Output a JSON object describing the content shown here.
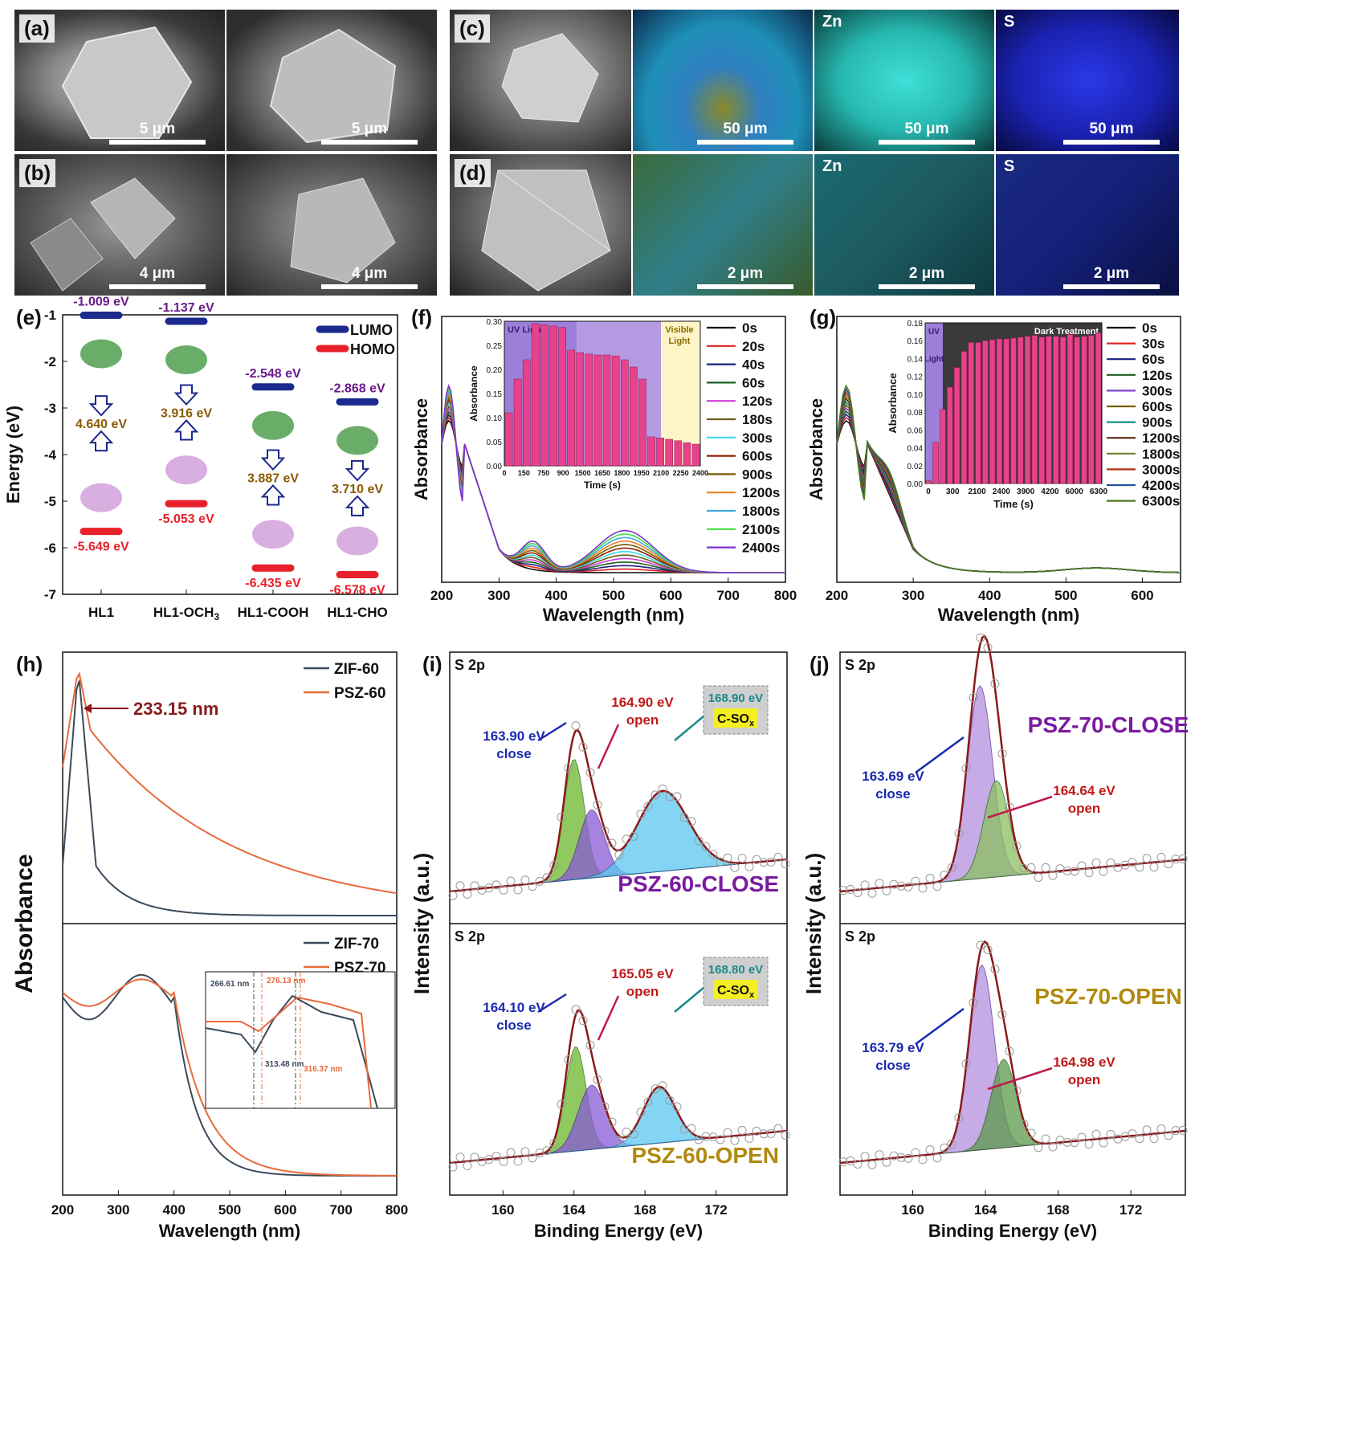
{
  "panels": {
    "a": {
      "letter": "(a)",
      "scale1": "5 μm",
      "scale2": "5 μm"
    },
    "b": {
      "letter": "(b)",
      "scale1": "4 μm",
      "scale2": "4 μm"
    },
    "c": {
      "letter": "(c)",
      "zn": "Zn",
      "s": "S",
      "scale": "50 μm"
    },
    "d": {
      "letter": "(d)",
      "zn": "Zn",
      "s": "S",
      "scale": "2 μm"
    },
    "e": {
      "letter": "(e)"
    },
    "f": {
      "letter": "(f)"
    },
    "g": {
      "letter": "(g)"
    },
    "h": {
      "letter": "(h)"
    },
    "i": {
      "letter": "(i)"
    },
    "j": {
      "letter": "(j)"
    }
  },
  "colors": {
    "lumo": "#1b2a8c",
    "homo": "#e8202a",
    "pink": "#e8428c",
    "purple": "#8a5ad8",
    "green": "#4aa02c",
    "cyan": "#5bc8ef",
    "zif": "#3b4a5a",
    "psz": "#e86a3a"
  },
  "chart_data": [
    {
      "id": "e",
      "type": "scatter",
      "ylabel": "Energy (eV)",
      "ylim": [
        -7,
        -1
      ],
      "yticks": [
        "-1",
        "-2",
        "-3",
        "-4",
        "-5",
        "-6",
        "-7"
      ],
      "categories": [
        "HL1",
        "HL1-OCH3",
        "HL1-COOH",
        "HL1-CHO"
      ],
      "category_labels": [
        "HL1",
        "HL1-OCH",
        "HL1-COOH",
        "HL1-CHO"
      ],
      "sub3": "3",
      "legend": [
        "LUMO",
        "HOMO"
      ],
      "lumo": [
        -1.009,
        -1.137,
        -2.548,
        -2.868
      ],
      "homo": [
        -5.649,
        -5.053,
        -6.435,
        -6.578
      ],
      "lumo_labels": [
        "-1.009 eV",
        "-1.137 eV",
        "-2.548 eV",
        "-2.868 eV"
      ],
      "homo_labels": [
        "-5.649 eV",
        "-5.053 eV",
        "-6.435 eV",
        "-6.578 eV"
      ],
      "gap_labels": [
        "4.640 eV",
        "3.916 eV",
        "3.887 eV",
        "3.710 eV"
      ]
    },
    {
      "id": "f",
      "type": "line",
      "xlabel": "Wavelength (nm)",
      "ylabel": "Absorbance",
      "xlim": [
        200,
        800
      ],
      "xticks": [
        "200",
        "300",
        "400",
        "500",
        "600",
        "700",
        "800"
      ],
      "series": [
        {
          "name": "0s",
          "color": "#111111"
        },
        {
          "name": "20s",
          "color": "#e02020"
        },
        {
          "name": "40s",
          "color": "#1a237e"
        },
        {
          "name": "60s",
          "color": "#1b5e20"
        },
        {
          "name": "120s",
          "color": "#d040d0"
        },
        {
          "name": "180s",
          "color": "#6d5a1a"
        },
        {
          "name": "300s",
          "color": "#40d8e8"
        },
        {
          "name": "600s",
          "color": "#8b2500"
        },
        {
          "name": "900s",
          "color": "#7a5a00"
        },
        {
          "name": "1200s",
          "color": "#f08020"
        },
        {
          "name": "1800s",
          "color": "#40a8e0"
        },
        {
          "name": "2100s",
          "color": "#40e040"
        },
        {
          "name": "2400s",
          "color": "#8030d0"
        }
      ],
      "inset": {
        "xlabel": "Time (s)",
        "ylabel": "Absorbance",
        "ylim": [
          0,
          0.3
        ],
        "yticks": [
          "0.00",
          "0.05",
          "0.10",
          "0.15",
          "0.20",
          "0.25",
          "0.30"
        ],
        "xticks": [
          "0",
          "150",
          "750",
          "900",
          "1500",
          "1650",
          "1800",
          "1950",
          "2100",
          "2250",
          "2400"
        ],
        "uv_label": "UV Light",
        "vis_label": "Visible Light",
        "values": [
          0.11,
          0.18,
          0.22,
          0.295,
          0.293,
          0.29,
          0.287,
          0.24,
          0.235,
          0.232,
          0.23,
          0.23,
          0.228,
          0.22,
          0.205,
          0.18,
          0.06,
          0.058,
          0.055,
          0.052,
          0.048,
          0.045
        ]
      }
    },
    {
      "id": "g",
      "type": "line",
      "xlabel": "Wavelength (nm)",
      "ylabel": "Absorbance",
      "xlim": [
        200,
        650
      ],
      "xticks": [
        "200",
        "300",
        "400",
        "500",
        "600"
      ],
      "series": [
        {
          "name": "0s",
          "color": "#111111"
        },
        {
          "name": "30s",
          "color": "#e02020"
        },
        {
          "name": "60s",
          "color": "#1a237e"
        },
        {
          "name": "120s",
          "color": "#1b5e20"
        },
        {
          "name": "300s",
          "color": "#8040d0"
        },
        {
          "name": "600s",
          "color": "#7a5a00"
        },
        {
          "name": "900s",
          "color": "#10908a"
        },
        {
          "name": "1200s",
          "color": "#5a2a10"
        },
        {
          "name": "1800s",
          "color": "#7a7a30"
        },
        {
          "name": "3000s",
          "color": "#b03010"
        },
        {
          "name": "4200s",
          "color": "#2050a0"
        },
        {
          "name": "6300s",
          "color": "#4a7a20"
        }
      ],
      "inset": {
        "xlabel": "Time (s)",
        "ylabel": "Absorbance",
        "ylim": [
          0,
          0.18
        ],
        "yticks": [
          "0.00",
          "0.02",
          "0.04",
          "0.06",
          "0.08",
          "0.10",
          "0.12",
          "0.14",
          "0.16",
          "0.18"
        ],
        "xticks": [
          "0",
          "300",
          "2100",
          "2400",
          "3900",
          "4200",
          "6000",
          "6300"
        ],
        "uv_label": "UV Light",
        "dark_label": "Dark Treatment",
        "values": [
          0.003,
          0.046,
          0.083,
          0.108,
          0.13,
          0.148,
          0.158,
          0.158,
          0.16,
          0.161,
          0.162,
          0.162,
          0.163,
          0.164,
          0.165,
          0.166,
          0.164,
          0.165,
          0.165,
          0.164,
          0.167,
          0.164,
          0.165,
          0.166,
          0.169
        ]
      }
    },
    {
      "id": "h",
      "type": "line",
      "xlabel": "Wavelength (nm)",
      "ylabel": "Absorbance",
      "xlim": [
        200,
        800
      ],
      "xticks": [
        "200",
        "300",
        "400",
        "500",
        "600",
        "700",
        "800"
      ],
      "top_legend": [
        "ZIF-60",
        "PSZ-60"
      ],
      "bottom_legend": [
        "ZIF-70",
        "PSZ-70"
      ],
      "peak_label": "233.15 nm",
      "inset_labels": [
        "266.61 nm",
        "276.13 nm",
        "313.48 nm",
        "316.37 nm"
      ]
    },
    {
      "id": "i",
      "type": "area",
      "xlabel": "Binding Energy (eV)",
      "ylabel": "Intensity (a.u.)",
      "xlim": [
        157,
        176
      ],
      "xticks": [
        "160",
        "164",
        "168",
        "172"
      ],
      "top": {
        "region": "S 2p",
        "sample": "PSZ-60-CLOSE",
        "close": [
          "163.90 eV",
          "close"
        ],
        "open": [
          "164.90 eV",
          "open"
        ],
        "cso": [
          "168.90 eV",
          "C-SO"
        ],
        "cso_sub": "x"
      },
      "bottom": {
        "region": "S 2p",
        "sample": "PSZ-60-OPEN",
        "close": [
          "164.10 eV",
          "close"
        ],
        "open": [
          "165.05 eV",
          "open"
        ],
        "cso": [
          "168.80 eV",
          "C-SO"
        ],
        "cso_sub": "x"
      }
    },
    {
      "id": "j",
      "type": "area",
      "xlabel": "Binding Energy (eV)",
      "ylabel": "Intensity (a.u.)",
      "xlim": [
        156,
        175
      ],
      "xticks": [
        "160",
        "164",
        "168",
        "172"
      ],
      "top": {
        "region": "S 2p",
        "sample": "PSZ-70-CLOSE",
        "close": [
          "163.69 eV",
          "close"
        ],
        "open": [
          "164.64 eV",
          "open"
        ]
      },
      "bottom": {
        "region": "S 2p",
        "sample": "PSZ-70-OPEN",
        "close": [
          "163.79 eV",
          "close"
        ],
        "open": [
          "164.98 eV",
          "open"
        ]
      }
    }
  ]
}
